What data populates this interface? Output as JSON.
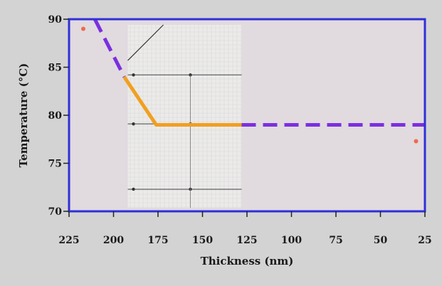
{
  "chart_data": {
    "type": "line",
    "xlabel": "Thickness (nm)",
    "ylabel": "Temperature (°C)",
    "xlim": [
      225,
      25
    ],
    "ylim": [
      70,
      90
    ],
    "x_reversed": true,
    "x_ticks": [
      225,
      200,
      175,
      150,
      125,
      100,
      75,
      50,
      25
    ],
    "y_ticks": [
      70,
      75,
      80,
      85,
      90
    ],
    "grid": false,
    "legend": "none",
    "colors": {
      "plot_background": "#e1dadf",
      "frame": "#2f2fd8",
      "dashed_line": "#7b2fe0",
      "solid_line": "#f0a020",
      "point": "#ee6a4a"
    },
    "series": [
      {
        "style": "dashed",
        "segments": [
          [
            [
              210.5,
              90
            ],
            [
              194,
              84
            ]
          ],
          [
            [
              128,
              79
            ],
            [
              25,
              79
            ]
          ]
        ]
      },
      {
        "style": "solid",
        "x": [
          194,
          176,
          128
        ],
        "y": [
          84,
          79,
          79
        ]
      }
    ],
    "points": [
      {
        "x": 217,
        "y": 89
      },
      {
        "x": 30,
        "y": 77.3
      }
    ],
    "inset_image": {
      "description_icon": "micrograph-panel",
      "x_range": [
        192,
        128
      ],
      "y_range": [
        70,
        90
      ]
    }
  }
}
